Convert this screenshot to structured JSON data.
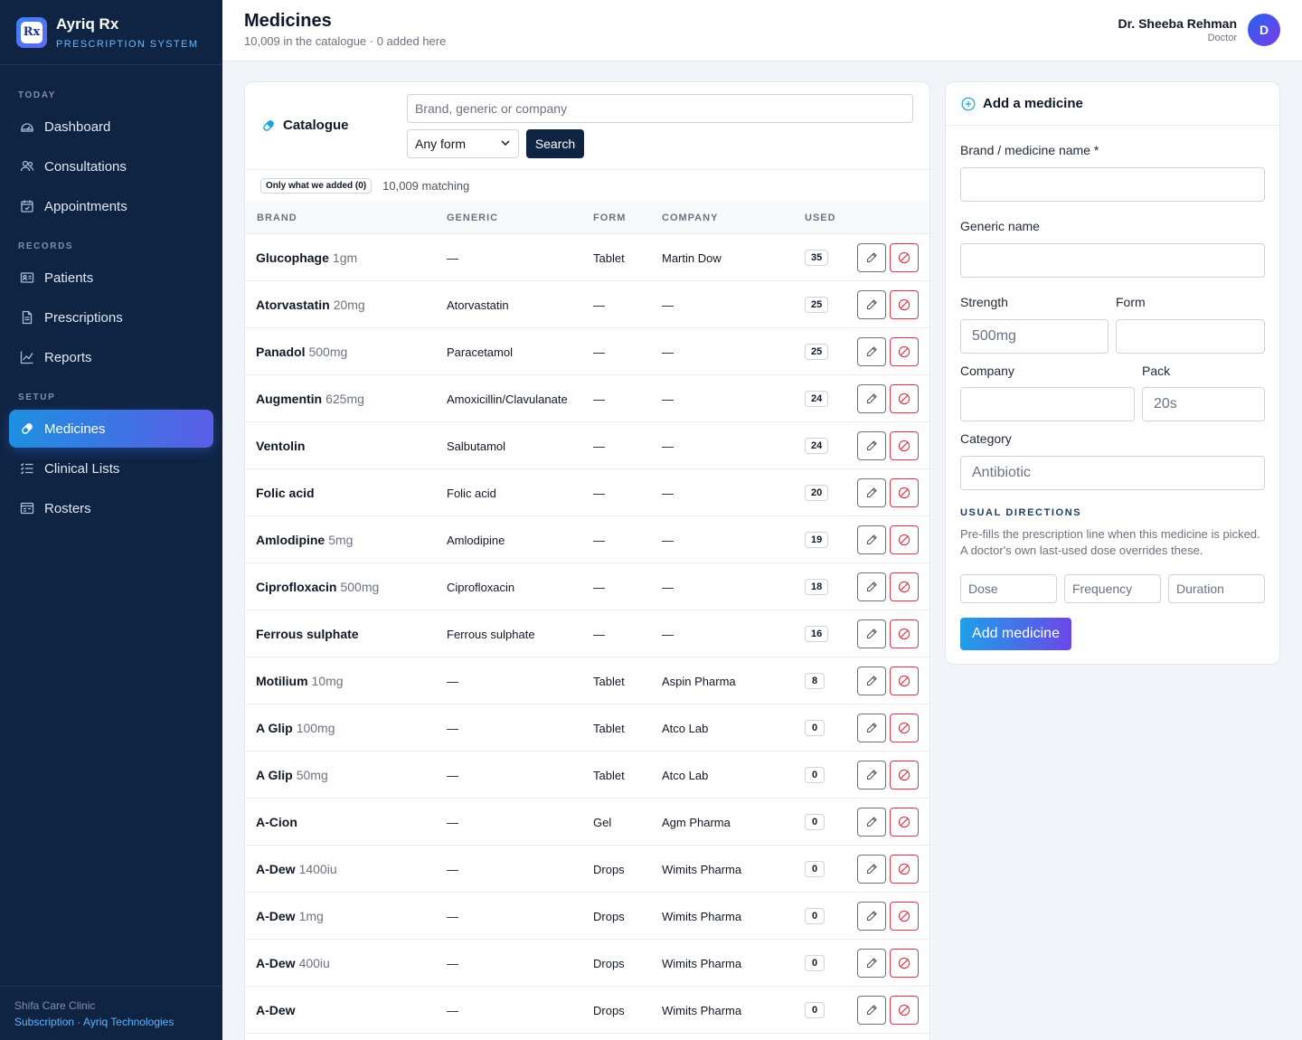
{
  "sidebar": {
    "app_title": "Ayriq Rx",
    "app_subtitle": "PRESCRIPTION SYSTEM",
    "logo_text": "Rx",
    "sections": [
      "TODAY",
      "RECORDS",
      "SETUP"
    ],
    "items": [
      {
        "label": "Dashboard",
        "icon": "dashboard-icon"
      },
      {
        "label": "Consultations",
        "icon": "users-icon"
      },
      {
        "label": "Appointments",
        "icon": "calendar-icon"
      },
      {
        "label": "Patients",
        "icon": "id-card-icon"
      },
      {
        "label": "Prescriptions",
        "icon": "document-icon"
      },
      {
        "label": "Reports",
        "icon": "chart-icon"
      },
      {
        "label": "Medicines",
        "icon": "pill-icon",
        "active": true
      },
      {
        "label": "Clinical Lists",
        "icon": "list-icon"
      },
      {
        "label": "Rosters",
        "icon": "roster-icon"
      }
    ],
    "footer_clinic": "Shifa Care Clinic",
    "footer_links": "Subscription · Ayriq Technologies"
  },
  "header": {
    "title": "Medicines",
    "subtitle": "10,009 in the catalogue · 0 added here",
    "user_name": "Dr. Sheeba Rehman",
    "user_role": "Doctor",
    "avatar_initial": "D"
  },
  "catalogue": {
    "title": "Catalogue",
    "search_placeholder": "Brand, generic or company",
    "form_select": "Any form",
    "search_button": "Search",
    "filter_chip": "Only what we added (0)",
    "matching": "10,009 matching",
    "columns": [
      "BRAND",
      "GENERIC",
      "FORM",
      "COMPANY",
      "USED"
    ],
    "rows": [
      {
        "brand": "Glucophage",
        "strength": "1gm",
        "generic": "—",
        "form": "Tablet",
        "company": "Martin Dow",
        "used": "35"
      },
      {
        "brand": "Atorvastatin",
        "strength": "20mg",
        "generic": "Atorvastatin",
        "form": "—",
        "company": "—",
        "used": "25"
      },
      {
        "brand": "Panadol",
        "strength": "500mg",
        "generic": "Paracetamol",
        "form": "—",
        "company": "—",
        "used": "25"
      },
      {
        "brand": "Augmentin",
        "strength": "625mg",
        "generic": "Amoxicillin/Clavulanate",
        "form": "—",
        "company": "—",
        "used": "24"
      },
      {
        "brand": "Ventolin",
        "strength": "",
        "generic": "Salbutamol",
        "form": "—",
        "company": "—",
        "used": "24"
      },
      {
        "brand": "Folic acid",
        "strength": "",
        "generic": "Folic acid",
        "form": "—",
        "company": "—",
        "used": "20"
      },
      {
        "brand": "Amlodipine",
        "strength": "5mg",
        "generic": "Amlodipine",
        "form": "—",
        "company": "—",
        "used": "19"
      },
      {
        "brand": "Ciprofloxacin",
        "strength": "500mg",
        "generic": "Ciprofloxacin",
        "form": "—",
        "company": "—",
        "used": "18"
      },
      {
        "brand": "Ferrous sulphate",
        "strength": "",
        "generic": "Ferrous sulphate",
        "form": "—",
        "company": "—",
        "used": "16"
      },
      {
        "brand": "Motilium",
        "strength": "10mg",
        "generic": "—",
        "form": "Tablet",
        "company": "Aspin Pharma",
        "used": "8"
      },
      {
        "brand": "A Glip",
        "strength": "100mg",
        "generic": "—",
        "form": "Tablet",
        "company": "Atco Lab",
        "used": "0"
      },
      {
        "brand": "A Glip",
        "strength": "50mg",
        "generic": "—",
        "form": "Tablet",
        "company": "Atco Lab",
        "used": "0"
      },
      {
        "brand": "A-Cion",
        "strength": "",
        "generic": "—",
        "form": "Gel",
        "company": "Agm Pharma",
        "used": "0"
      },
      {
        "brand": "A-Dew",
        "strength": "1400iu",
        "generic": "—",
        "form": "Drops",
        "company": "Wimits Pharma",
        "used": "0"
      },
      {
        "brand": "A-Dew",
        "strength": "1mg",
        "generic": "—",
        "form": "Drops",
        "company": "Wimits Pharma",
        "used": "0"
      },
      {
        "brand": "A-Dew",
        "strength": "400iu",
        "generic": "—",
        "form": "Drops",
        "company": "Wimits Pharma",
        "used": "0"
      },
      {
        "brand": "A-Dew",
        "strength": "",
        "generic": "—",
        "form": "Drops",
        "company": "Wimits Pharma",
        "used": "0"
      }
    ]
  },
  "add_form": {
    "title": "Add a medicine",
    "brand_label": "Brand / medicine name *",
    "generic_label": "Generic name",
    "strength_label": "Strength",
    "strength_placeholder": "500mg",
    "form_label": "Form",
    "company_label": "Company",
    "pack_label": "Pack",
    "pack_placeholder": "20s",
    "category_label": "Category",
    "category_placeholder": "Antibiotic",
    "directions_title": "USUAL DIRECTIONS",
    "directions_help": "Pre-fills the prescription line when this medicine is picked. A doctor's own last-used dose overrides these.",
    "dose_placeholder": "Dose",
    "frequency_placeholder": "Frequency",
    "duration_placeholder": "Duration",
    "submit_label": "Add medicine"
  },
  "colors": {
    "sidebar_bg": "#0f2443",
    "accent": "#1d8fe0",
    "accent_end": "#5b5de6",
    "danger": "#dc3545"
  }
}
